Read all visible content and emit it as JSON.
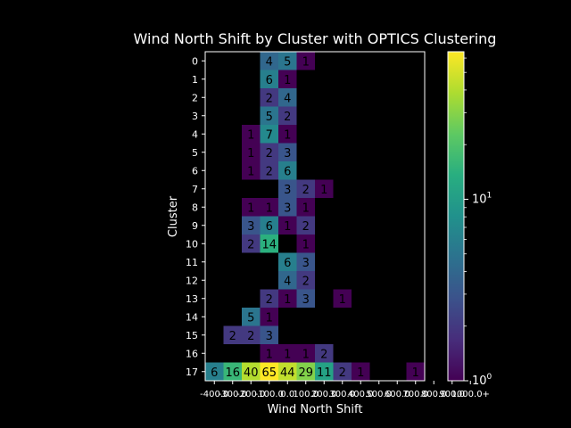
{
  "chart_data": {
    "type": "heatmap",
    "title": "Wind North Shift by Cluster with OPTICS Clustering",
    "xlabel": "Wind North Shift",
    "ylabel": "Cluster",
    "x_ticks": [
      "-400.0",
      "-300.0",
      "-200.0",
      "-100.0",
      "0.0",
      "100.0",
      "200.0",
      "300.0",
      "400.0",
      "500.0",
      "600.0",
      "700.0",
      "800.0",
      "900.0",
      "1000.0+"
    ],
    "y_ticks": [
      "0",
      "1",
      "2",
      "3",
      "4",
      "5",
      "6",
      "7",
      "8",
      "9",
      "10",
      "11",
      "12",
      "13",
      "14",
      "15",
      "16",
      "17"
    ],
    "colorbar": {
      "scale": "log",
      "ticks": [
        "10^0",
        "10^1"
      ],
      "min": 1,
      "max": 65
    },
    "colormap": "viridis",
    "cells": [
      {
        "cluster": 0,
        "bin": 3,
        "count": 4
      },
      {
        "cluster": 0,
        "bin": 4,
        "count": 5
      },
      {
        "cluster": 0,
        "bin": 5,
        "count": 1
      },
      {
        "cluster": 1,
        "bin": 3,
        "count": 6
      },
      {
        "cluster": 1,
        "bin": 4,
        "count": 1
      },
      {
        "cluster": 2,
        "bin": 3,
        "count": 2
      },
      {
        "cluster": 2,
        "bin": 4,
        "count": 4
      },
      {
        "cluster": 3,
        "bin": 3,
        "count": 5
      },
      {
        "cluster": 3,
        "bin": 4,
        "count": 2
      },
      {
        "cluster": 4,
        "bin": 2,
        "count": 1
      },
      {
        "cluster": 4,
        "bin": 3,
        "count": 7
      },
      {
        "cluster": 4,
        "bin": 4,
        "count": 1
      },
      {
        "cluster": 5,
        "bin": 2,
        "count": 1
      },
      {
        "cluster": 5,
        "bin": 3,
        "count": 2
      },
      {
        "cluster": 5,
        "bin": 4,
        "count": 3
      },
      {
        "cluster": 6,
        "bin": 2,
        "count": 1
      },
      {
        "cluster": 6,
        "bin": 3,
        "count": 2
      },
      {
        "cluster": 6,
        "bin": 4,
        "count": 6
      },
      {
        "cluster": 7,
        "bin": 4,
        "count": 3
      },
      {
        "cluster": 7,
        "bin": 5,
        "count": 2
      },
      {
        "cluster": 7,
        "bin": 6,
        "count": 1
      },
      {
        "cluster": 8,
        "bin": 2,
        "count": 1
      },
      {
        "cluster": 8,
        "bin": 3,
        "count": 1
      },
      {
        "cluster": 8,
        "bin": 4,
        "count": 3
      },
      {
        "cluster": 8,
        "bin": 5,
        "count": 1
      },
      {
        "cluster": 9,
        "bin": 2,
        "count": 3
      },
      {
        "cluster": 9,
        "bin": 3,
        "count": 6
      },
      {
        "cluster": 9,
        "bin": 4,
        "count": 1
      },
      {
        "cluster": 9,
        "bin": 5,
        "count": 2
      },
      {
        "cluster": 10,
        "bin": 2,
        "count": 2
      },
      {
        "cluster": 10,
        "bin": 3,
        "count": 14
      },
      {
        "cluster": 10,
        "bin": 5,
        "count": 1
      },
      {
        "cluster": 11,
        "bin": 4,
        "count": 6
      },
      {
        "cluster": 11,
        "bin": 5,
        "count": 3
      },
      {
        "cluster": 12,
        "bin": 4,
        "count": 4
      },
      {
        "cluster": 12,
        "bin": 5,
        "count": 2
      },
      {
        "cluster": 13,
        "bin": 3,
        "count": 2
      },
      {
        "cluster": 13,
        "bin": 4,
        "count": 1
      },
      {
        "cluster": 13,
        "bin": 5,
        "count": 3
      },
      {
        "cluster": 13,
        "bin": 7,
        "count": 1
      },
      {
        "cluster": 14,
        "bin": 2,
        "count": 5
      },
      {
        "cluster": 14,
        "bin": 3,
        "count": 1
      },
      {
        "cluster": 15,
        "bin": 1,
        "count": 2
      },
      {
        "cluster": 15,
        "bin": 2,
        "count": 2
      },
      {
        "cluster": 15,
        "bin": 3,
        "count": 3
      },
      {
        "cluster": 16,
        "bin": 3,
        "count": 1
      },
      {
        "cluster": 16,
        "bin": 4,
        "count": 1
      },
      {
        "cluster": 16,
        "bin": 5,
        "count": 1
      },
      {
        "cluster": 16,
        "bin": 6,
        "count": 2
      },
      {
        "cluster": 17,
        "bin": 0,
        "count": 6
      },
      {
        "cluster": 17,
        "bin": 1,
        "count": 16
      },
      {
        "cluster": 17,
        "bin": 2,
        "count": 40
      },
      {
        "cluster": 17,
        "bin": 3,
        "count": 65
      },
      {
        "cluster": 17,
        "bin": 4,
        "count": 44
      },
      {
        "cluster": 17,
        "bin": 5,
        "count": 29
      },
      {
        "cluster": 17,
        "bin": 6,
        "count": 11
      },
      {
        "cluster": 17,
        "bin": 7,
        "count": 2
      },
      {
        "cluster": 17,
        "bin": 8,
        "count": 1
      },
      {
        "cluster": 17,
        "bin": 11,
        "count": 1
      }
    ]
  }
}
